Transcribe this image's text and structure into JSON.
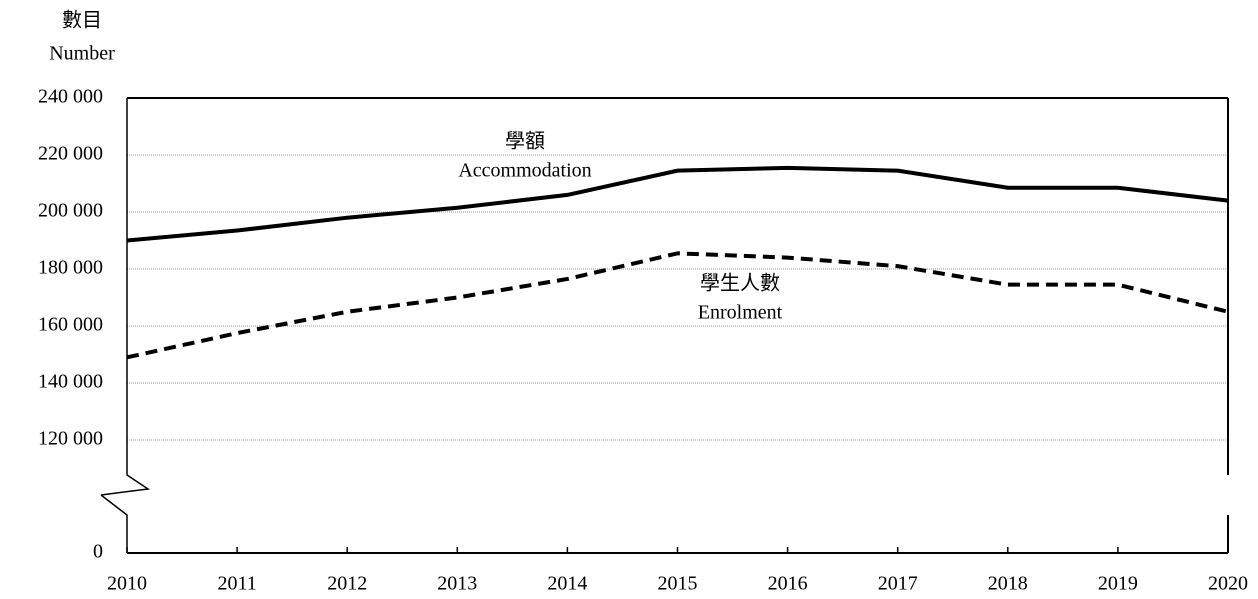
{
  "chart_data": {
    "type": "line",
    "y_axis_label": [
      "數目",
      "Number"
    ],
    "categories": [
      "2010",
      "2011",
      "2012",
      "2013",
      "2014",
      "2015",
      "2016",
      "2017",
      "2018",
      "2019",
      "2020"
    ],
    "series": [
      {
        "name": [
          "學額",
          "Accommodation"
        ],
        "color": "#000000",
        "dash": "solid",
        "values": [
          190000,
          193500,
          198000,
          201500,
          206000,
          214500,
          215500,
          214500,
          208500,
          208500,
          204000
        ]
      },
      {
        "name": [
          "學生人數",
          "Enrolment"
        ],
        "color": "#000000",
        "dash": "dashed",
        "values": [
          149000,
          157500,
          165000,
          170000,
          176500,
          185500,
          184000,
          181000,
          174500,
          174500,
          165000
        ]
      }
    ],
    "ylim": [
      0,
      240000
    ],
    "axis_break": true,
    "yticks": [
      0,
      {
        "value": 120000,
        "label": "120 000"
      },
      {
        "value": 140000,
        "label": "140 000"
      },
      {
        "value": 160000,
        "label": "160 000"
      },
      {
        "value": 180000,
        "label": "180 000"
      },
      {
        "value": 200000,
        "label": "200 000"
      },
      {
        "value": 220000,
        "label": "220 000"
      },
      {
        "value": 240000,
        "label": "240 000"
      }
    ],
    "grid": true
  }
}
